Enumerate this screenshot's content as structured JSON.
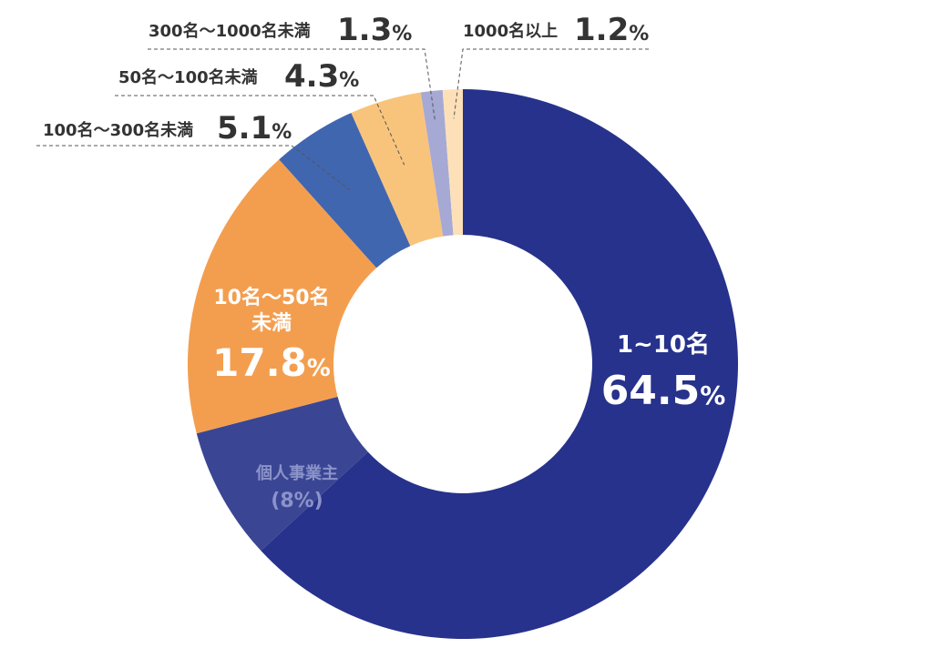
{
  "chart_data": {
    "type": "pie",
    "donut": true,
    "title": "",
    "legend": "none",
    "slices": [
      {
        "label": "1~10名",
        "value": 64.5,
        "display": "64.5",
        "color": "#27328c"
      },
      {
        "label": "個人事業主",
        "value": 8.0,
        "display": "(8%)",
        "color": "#3a4694"
      },
      {
        "label": "10名～50名未満",
        "value": 17.8,
        "display": "17.8",
        "color": "#f39e4f"
      },
      {
        "label": "100名～300名未満",
        "value": 5.1,
        "display": "5.1",
        "color": "#4166b0"
      },
      {
        "label": "50名～100名未満",
        "value": 4.3,
        "display": "4.3",
        "color": "#f8c47c"
      },
      {
        "label": "300名～1000名未満",
        "value": 1.3,
        "display": "1.3",
        "color": "#a5a9d4"
      },
      {
        "label": "1000名以上",
        "value": 1.2,
        "display": "1.2",
        "color": "#fde0b8"
      }
    ],
    "percent_sign": "%",
    "label_lines": [
      "10名～50名",
      "未満"
    ]
  }
}
